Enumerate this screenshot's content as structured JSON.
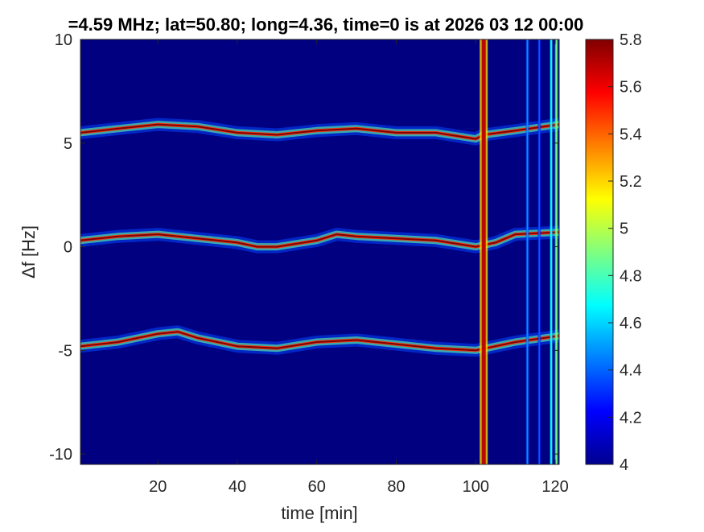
{
  "chart_data": {
    "type": "heatmap",
    "title": "=4.59 MHz;  lat=50.80; long=4.36, time=0 is at 2026 03 12 00:00",
    "xlabel": "time [min]",
    "ylabel": "Δf [Hz]",
    "xlim": [
      0.5,
      121
    ],
    "ylim": [
      -10.5,
      10
    ],
    "xticks": [
      20,
      40,
      60,
      80,
      100,
      120
    ],
    "yticks": [
      10,
      5,
      0,
      -5,
      -10
    ],
    "xtick_labels": [
      "20",
      "40",
      "60",
      "80",
      "100",
      "120"
    ],
    "ytick_labels": [
      "10",
      "5",
      "0",
      "-5",
      "-10"
    ],
    "background_value": 4.0,
    "colorbar": {
      "colormap": "jet",
      "min": 4,
      "max": 5.8,
      "ticks": [
        4,
        4.2,
        4.4,
        4.6,
        4.8,
        5,
        5.2,
        5.4,
        5.6,
        5.8
      ],
      "tick_labels": [
        "4",
        "4.2",
        "4.4",
        "4.6",
        "4.8",
        "5",
        "5.2",
        "5.4",
        "5.6",
        "5.8"
      ]
    },
    "traces": [
      {
        "name": "upper",
        "time_min": [
          0.5,
          10,
          20,
          30,
          40,
          50,
          60,
          70,
          80,
          90,
          100,
          102,
          110,
          121
        ],
        "delta_f_hz": [
          5.5,
          5.7,
          5.9,
          5.8,
          5.5,
          5.4,
          5.6,
          5.7,
          5.5,
          5.5,
          5.2,
          5.4,
          5.6,
          5.9
        ]
      },
      {
        "name": "middle",
        "time_min": [
          0.5,
          10,
          20,
          30,
          40,
          45,
          50,
          60,
          65,
          70,
          80,
          90,
          100,
          105,
          110,
          121
        ],
        "delta_f_hz": [
          0.3,
          0.5,
          0.6,
          0.4,
          0.2,
          0.0,
          0.0,
          0.3,
          0.6,
          0.5,
          0.4,
          0.3,
          0.0,
          0.2,
          0.6,
          0.7
        ]
      },
      {
        "name": "lower",
        "time_min": [
          0.5,
          10,
          20,
          25,
          30,
          40,
          50,
          60,
          70,
          80,
          90,
          100,
          110,
          121
        ],
        "delta_f_hz": [
          -4.8,
          -4.6,
          -4.2,
          -4.1,
          -4.4,
          -4.8,
          -4.9,
          -4.6,
          -4.5,
          -4.7,
          -4.9,
          -5.0,
          -4.6,
          -4.3
        ]
      }
    ],
    "vertical_bands": [
      {
        "time_min": 102,
        "value": 5.7
      },
      {
        "time_min": 113,
        "value": 4.5
      },
      {
        "time_min": 116,
        "value": 4.4
      },
      {
        "time_min": 119,
        "value": 4.7
      },
      {
        "time_min": 120.3,
        "value": 4.9
      }
    ]
  }
}
